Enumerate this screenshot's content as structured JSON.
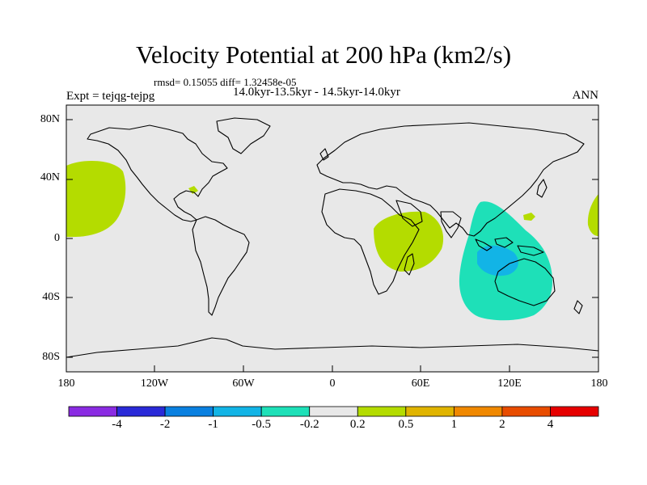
{
  "title": "Velocity Potential at 200 hPa (km2/s)",
  "stats_text": "rmsd= 0.15055 diff= 1.32458e-05",
  "period_text": "14.0kyr-13.5kyr - 14.5kyr-14.0kyr",
  "experiment_text": "Expt = tejqg-tejpg",
  "season_text": "ANN",
  "lat_ticks": [
    "80N",
    "40N",
    "0",
    "40S",
    "80S"
  ],
  "lon_ticks": [
    "180",
    "120W",
    "60W",
    "0",
    "60E",
    "120E",
    "180"
  ],
  "colorbar": {
    "colors": [
      "#8a2be2",
      "#2a2ad8",
      "#0a80e0",
      "#12b4e6",
      "#1ee0b8",
      "#e8e8e8",
      "#b4dc00",
      "#e0b400",
      "#f08800",
      "#e84c00",
      "#e60000"
    ],
    "labels": [
      "-4",
      "-2",
      "-1",
      "-0.5",
      "-0.2",
      "0.2",
      "0.5",
      "1",
      "2",
      "4"
    ]
  },
  "colors": {
    "ocean_bg": "#e8e8e8",
    "positive_fill": "#b4dc00",
    "negative_fill": "#1ee0b8",
    "negative_core": "#12b4e6"
  }
}
